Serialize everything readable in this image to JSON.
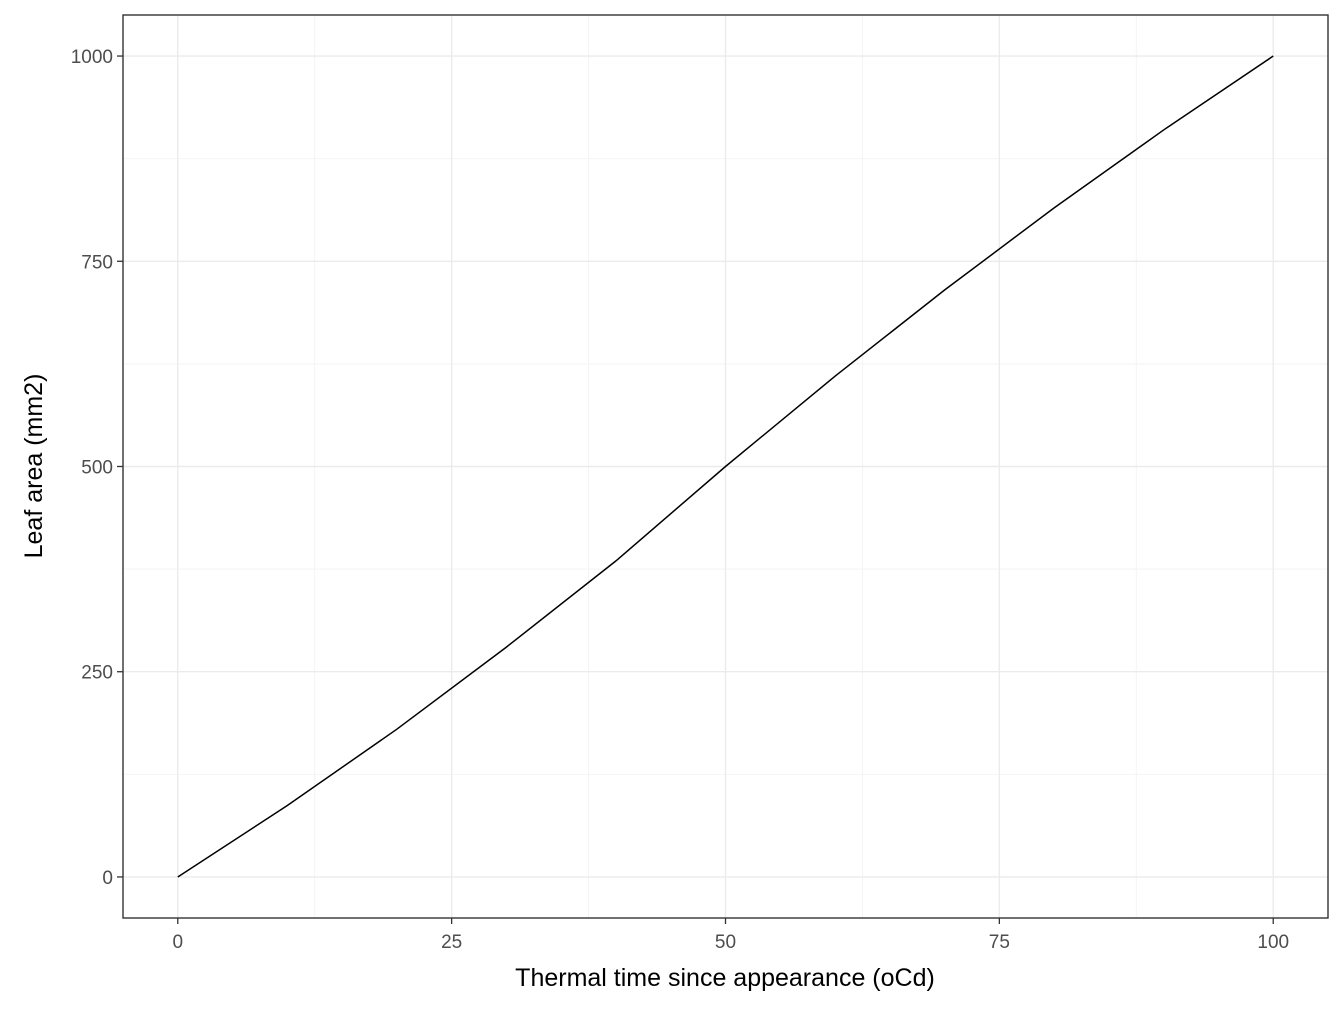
{
  "chart_data": {
    "type": "line",
    "title": "",
    "xlabel": "Thermal time since appearance (oCd)",
    "ylabel": "Leaf area (mm2)",
    "xlim": [
      -5,
      105
    ],
    "ylim": [
      -50,
      1050
    ],
    "x_ticks": [
      0,
      25,
      50,
      75,
      100
    ],
    "y_ticks": [
      0,
      250,
      500,
      750,
      1000
    ],
    "x_tick_labels": [
      "0",
      "25",
      "50",
      "75",
      "100"
    ],
    "y_tick_labels": [
      "0",
      "250",
      "500",
      "750",
      "1000"
    ],
    "x_minor_ticks": [
      12.5,
      37.5,
      62.5,
      87.5
    ],
    "y_minor_ticks": [
      125,
      375,
      625,
      875
    ],
    "grid": true,
    "legend": "none",
    "series": [
      {
        "color": "#000000",
        "x": [
          0,
          10,
          20,
          30,
          40,
          50,
          60,
          70,
          80,
          90,
          100
        ],
        "y": [
          0,
          87,
          180,
          280,
          385,
          500,
          610,
          715,
          815,
          910,
          1000
        ]
      }
    ]
  }
}
